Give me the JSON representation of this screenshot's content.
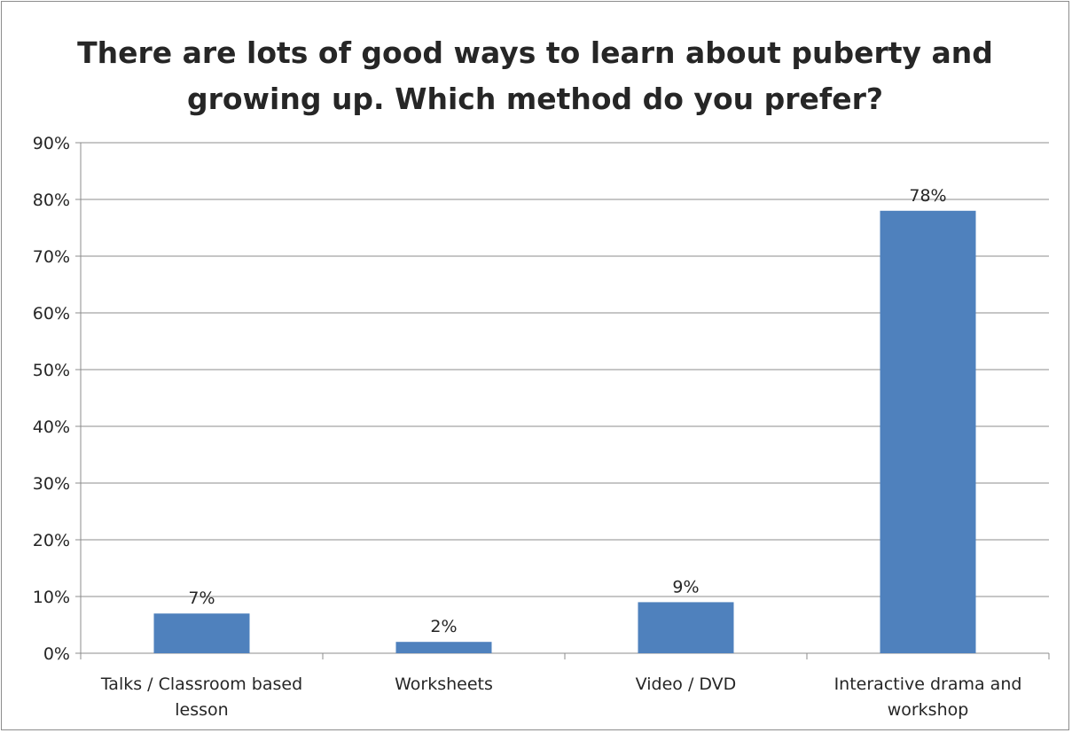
{
  "chart_data": {
    "type": "bar",
    "title_lines": [
      "There are lots of good ways to learn about puberty and",
      "growing up. Which method do you prefer?"
    ],
    "categories": [
      [
        "Talks / Classroom based",
        "lesson"
      ],
      [
        "Worksheets"
      ],
      [
        "Video / DVD"
      ],
      [
        "Interactive drama and",
        "workshop"
      ]
    ],
    "values": [
      7,
      2,
      9,
      78
    ],
    "data_labels": [
      "7%",
      "2%",
      "9%",
      "78%"
    ],
    "bar_color": "#4f81bd",
    "ylim": [
      0,
      90
    ],
    "y_ticks": [
      0,
      10,
      20,
      30,
      40,
      50,
      60,
      70,
      80,
      90
    ],
    "y_tick_labels": [
      "0%",
      "10%",
      "20%",
      "30%",
      "40%",
      "50%",
      "60%",
      "70%",
      "80%",
      "90%"
    ],
    "grid": true,
    "legend": "none"
  }
}
